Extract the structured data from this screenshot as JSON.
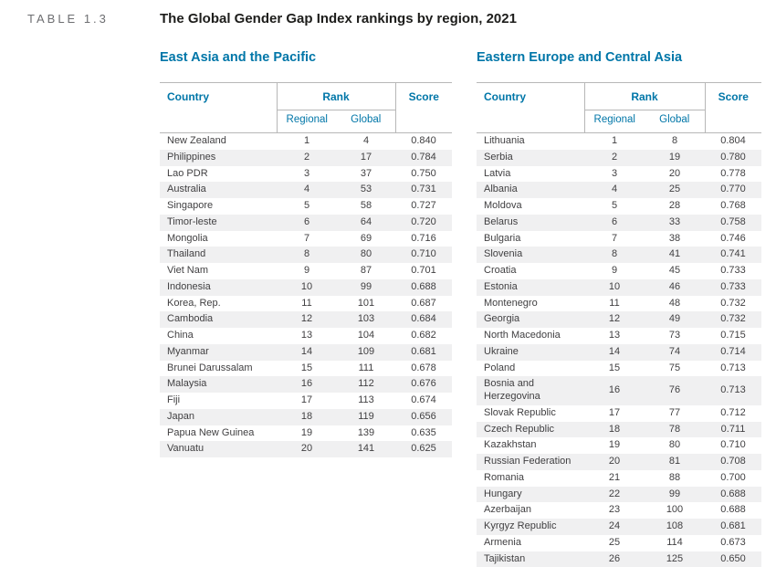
{
  "page": {
    "table_label": "TABLE 1.3",
    "title": "The Global Gender Gap Index rankings by region, 2021"
  },
  "columns": {
    "country": "Country",
    "rank": "Rank",
    "regional": "Regional",
    "global": "Global",
    "score": "Score"
  },
  "colors": {
    "accent_blue": "#0076a8",
    "row_stripe": "#f0f0f1",
    "border_gray": "#b7b7b7",
    "label_gray": "#6d6e71"
  },
  "tables": [
    {
      "region": "East Asia and the Pacific",
      "rows": [
        [
          "New Zealand",
          "1",
          "4",
          "0.840"
        ],
        [
          "Philippines",
          "2",
          "17",
          "0.784"
        ],
        [
          "Lao PDR",
          "3",
          "37",
          "0.750"
        ],
        [
          "Australia",
          "4",
          "53",
          "0.731"
        ],
        [
          "Singapore",
          "5",
          "58",
          "0.727"
        ],
        [
          "Timor-leste",
          "6",
          "64",
          "0.720"
        ],
        [
          "Mongolia",
          "7",
          "69",
          "0.716"
        ],
        [
          "Thailand",
          "8",
          "80",
          "0.710"
        ],
        [
          "Viet Nam",
          "9",
          "87",
          "0.701"
        ],
        [
          "Indonesia",
          "10",
          "99",
          "0.688"
        ],
        [
          "Korea, Rep.",
          "11",
          "101",
          "0.687"
        ],
        [
          "Cambodia",
          "12",
          "103",
          "0.684"
        ],
        [
          "China",
          "13",
          "104",
          "0.682"
        ],
        [
          "Myanmar",
          "14",
          "109",
          "0.681"
        ],
        [
          "Brunei Darussalam",
          "15",
          "111",
          "0.678"
        ],
        [
          "Malaysia",
          "16",
          "112",
          "0.676"
        ],
        [
          "Fiji",
          "17",
          "113",
          "0.674"
        ],
        [
          "Japan",
          "18",
          "119",
          "0.656"
        ],
        [
          "Papua New Guinea",
          "19",
          "139",
          "0.635"
        ],
        [
          "Vanuatu",
          "20",
          "141",
          "0.625"
        ]
      ]
    },
    {
      "region": "Eastern Europe and Central Asia",
      "rows": [
        [
          "Lithuania",
          "1",
          "8",
          "0.804"
        ],
        [
          "Serbia",
          "2",
          "19",
          "0.780"
        ],
        [
          "Latvia",
          "3",
          "20",
          "0.778"
        ],
        [
          "Albania",
          "4",
          "25",
          "0.770"
        ],
        [
          "Moldova",
          "5",
          "28",
          "0.768"
        ],
        [
          "Belarus",
          "6",
          "33",
          "0.758"
        ],
        [
          "Bulgaria",
          "7",
          "38",
          "0.746"
        ],
        [
          "Slovenia",
          "8",
          "41",
          "0.741"
        ],
        [
          "Croatia",
          "9",
          "45",
          "0.733"
        ],
        [
          "Estonia",
          "10",
          "46",
          "0.733"
        ],
        [
          "Montenegro",
          "11",
          "48",
          "0.732"
        ],
        [
          "Georgia",
          "12",
          "49",
          "0.732"
        ],
        [
          "North Macedonia",
          "13",
          "73",
          "0.715"
        ],
        [
          "Ukraine",
          "14",
          "74",
          "0.714"
        ],
        [
          "Poland",
          "15",
          "75",
          "0.713"
        ],
        [
          "Bosnia and Herzegovina",
          "16",
          "76",
          "0.713"
        ],
        [
          "Slovak Republic",
          "17",
          "77",
          "0.712"
        ],
        [
          "Czech Republic",
          "18",
          "78",
          "0.711"
        ],
        [
          "Kazakhstan",
          "19",
          "80",
          "0.710"
        ],
        [
          "Russian Federation",
          "20",
          "81",
          "0.708"
        ],
        [
          "Romania",
          "21",
          "88",
          "0.700"
        ],
        [
          "Hungary",
          "22",
          "99",
          "0.688"
        ],
        [
          "Azerbaijan",
          "23",
          "100",
          "0.688"
        ],
        [
          "Kyrgyz Republic",
          "24",
          "108",
          "0.681"
        ],
        [
          "Armenia",
          "25",
          "114",
          "0.673"
        ],
        [
          "Tajikistan",
          "26",
          "125",
          "0.650"
        ]
      ]
    }
  ]
}
